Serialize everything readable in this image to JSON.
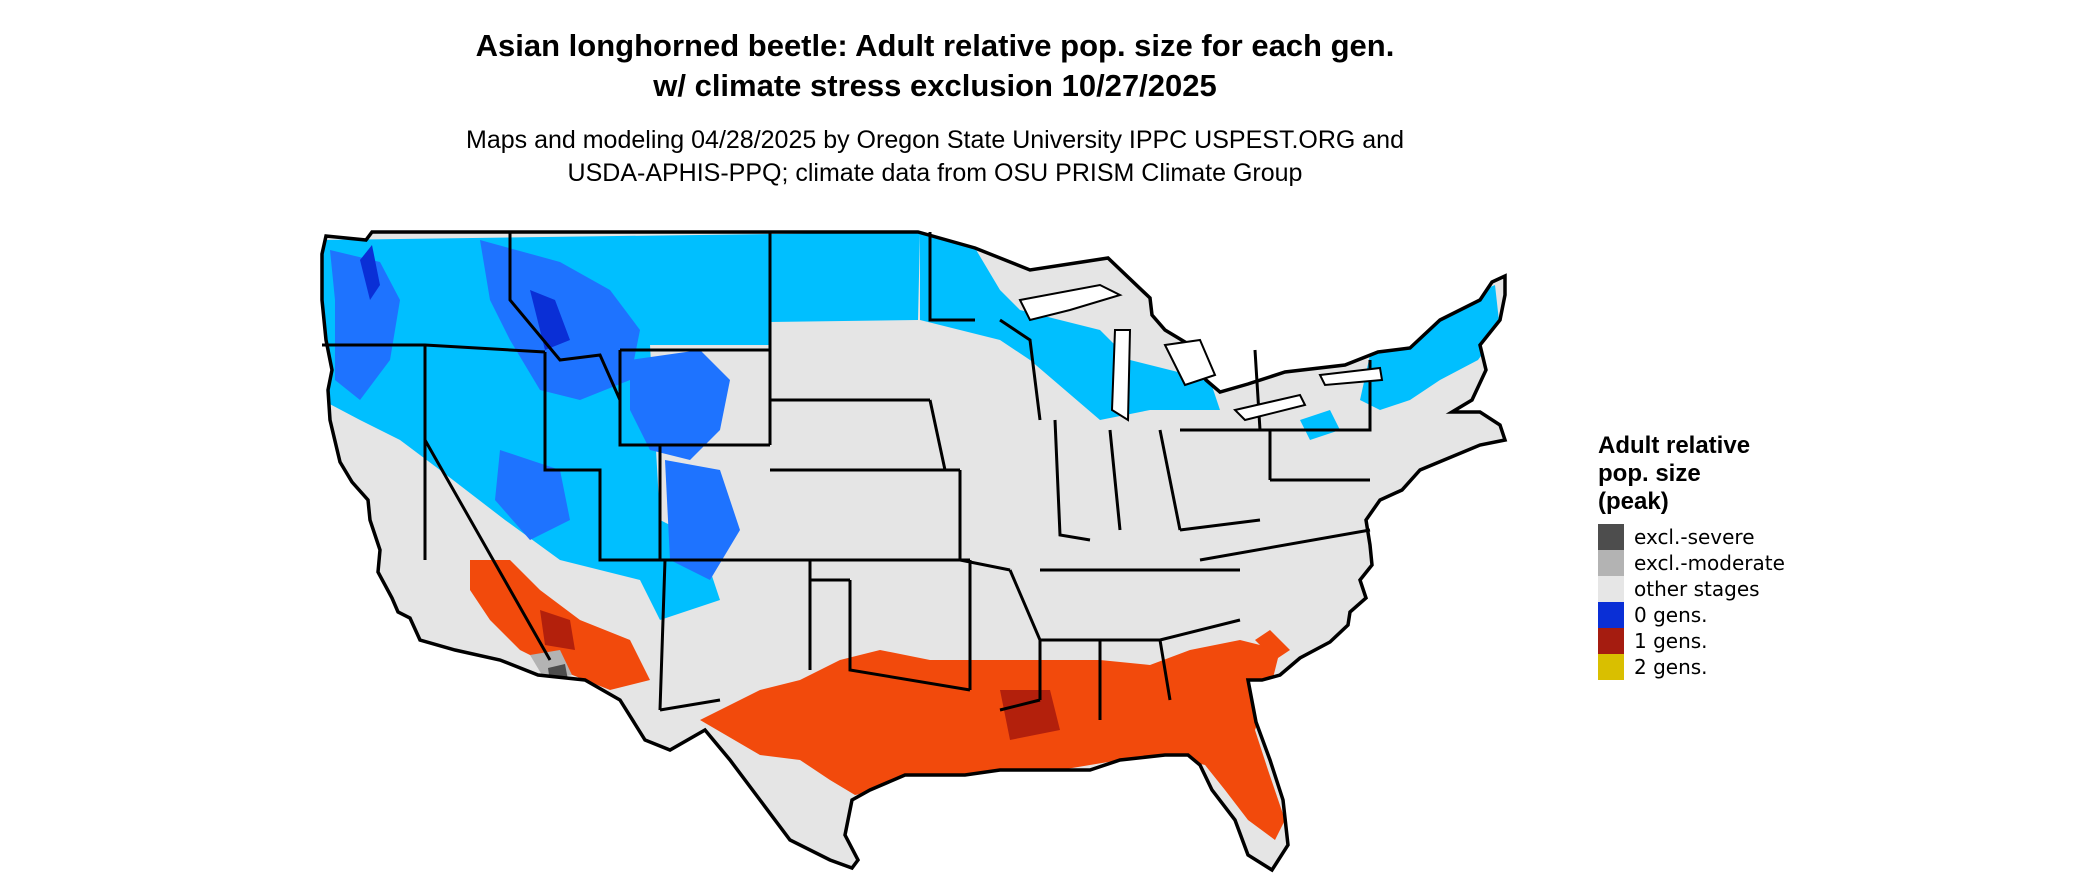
{
  "title_line1": "Asian longhorned beetle: Adult relative pop. size for each gen.",
  "title_line2": "w/ climate stress exclusion 10/27/2025",
  "subtitle_line1": "Maps and modeling 04/28/2025 by Oregon State University IPPC USPEST.ORG and",
  "subtitle_line2": "USDA-APHIS-PPQ; climate data from OSU PRISM Climate Group",
  "legend": {
    "title_line1": "Adult relative",
    "title_line2": "pop. size",
    "title_line3": "(peak)",
    "items": [
      {
        "label": "excl.-severe",
        "color": "#4d4d4d"
      },
      {
        "label": "excl.-moderate",
        "color": "#b3b3b3"
      },
      {
        "label": "other stages",
        "color": "#e6e6e6"
      },
      {
        "label": "0 gens.",
        "color": "#0a2fd6"
      },
      {
        "label": "1 gens.",
        "color": "#a51c10"
      },
      {
        "label": "2 gens.",
        "color": "#d9bf00"
      }
    ]
  },
  "colors": {
    "land": "#e5e5e5",
    "cold_light": "#00bfff",
    "cold_mid": "#1e73ff",
    "cold_dark": "#0a2fd6",
    "warm": "#f24a0c",
    "warm_dark": "#b3200c",
    "border": "#000000"
  }
}
